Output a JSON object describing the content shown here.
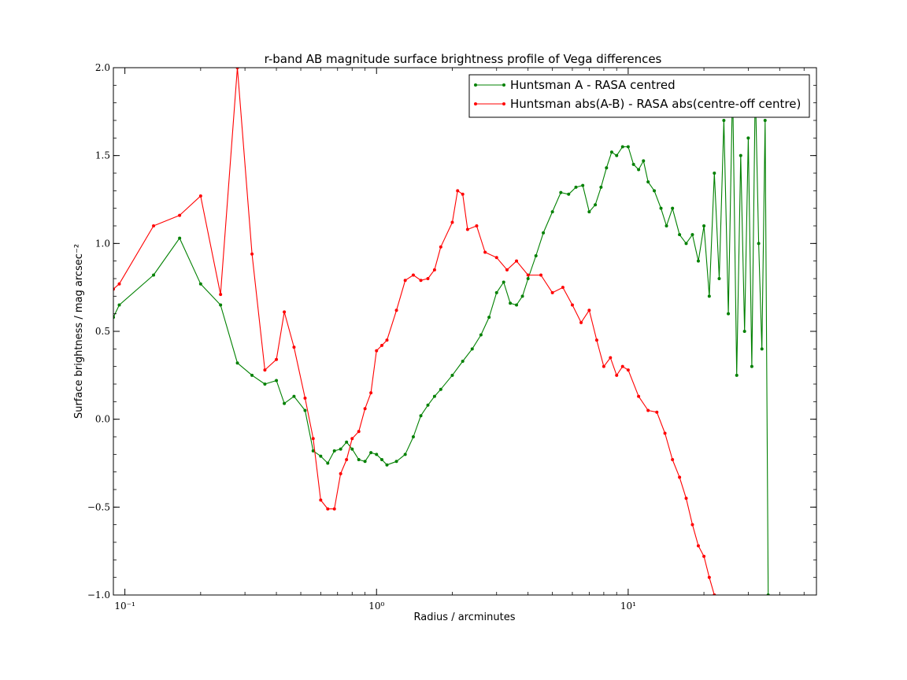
{
  "chart_data": {
    "type": "line",
    "title": "r-band AB magnitude surface brightness profile of Vega differences",
    "xlabel": "Radius / arcminutes",
    "ylabel": "Surface brightness / mag arcsec⁻²",
    "xscale": "log",
    "xlim": [
      0.09,
      56
    ],
    "ylim": [
      -1.0,
      2.0
    ],
    "x_ticks": [
      0.1,
      1,
      10
    ],
    "x_tick_labels": [
      "10⁻¹",
      "10⁰",
      "10¹"
    ],
    "y_ticks": [
      -1.0,
      -0.5,
      0.0,
      0.5,
      1.0,
      1.5,
      2.0
    ],
    "y_tick_labels": [
      "−1.0",
      "−0.5",
      "0.0",
      "0.5",
      "1.0",
      "1.5",
      "2.0"
    ],
    "grid": false,
    "legend_position": "top-right",
    "series": [
      {
        "name": "Huntsman A - RASA centred",
        "color": "#008000",
        "x": [
          0.09,
          0.095,
          0.13,
          0.165,
          0.2,
          0.24,
          0.28,
          0.32,
          0.36,
          0.4,
          0.43,
          0.47,
          0.52,
          0.56,
          0.6,
          0.64,
          0.68,
          0.72,
          0.76,
          0.8,
          0.85,
          0.9,
          0.95,
          1.0,
          1.05,
          1.1,
          1.2,
          1.3,
          1.4,
          1.5,
          1.6,
          1.7,
          1.8,
          2.0,
          2.2,
          2.4,
          2.6,
          2.8,
          3.0,
          3.2,
          3.4,
          3.6,
          3.8,
          4.0,
          4.3,
          4.6,
          5.0,
          5.4,
          5.8,
          6.2,
          6.6,
          7.0,
          7.4,
          7.8,
          8.2,
          8.6,
          9.0,
          9.5,
          10.0,
          10.5,
          11.0,
          11.5,
          12.0,
          12.7,
          13.5,
          14.2,
          15.0,
          16.0,
          17.0,
          18.0,
          19.0,
          20.0,
          21.0,
          22.0,
          23.0,
          24.0,
          25.0,
          26.0,
          27.0,
          28.0,
          29.0,
          30.0,
          31.0,
          32.0,
          33.0,
          34.0,
          35.0,
          36.0
        ],
        "y": [
          0.58,
          0.65,
          0.82,
          1.03,
          0.77,
          0.65,
          0.32,
          0.25,
          0.2,
          0.22,
          0.09,
          0.13,
          0.05,
          -0.18,
          -0.21,
          -0.25,
          -0.18,
          -0.17,
          -0.13,
          -0.17,
          -0.23,
          -0.24,
          -0.19,
          -0.2,
          -0.23,
          -0.26,
          -0.24,
          -0.2,
          -0.1,
          0.02,
          0.08,
          0.13,
          0.17,
          0.25,
          0.33,
          0.4,
          0.48,
          0.58,
          0.72,
          0.78,
          0.66,
          0.65,
          0.7,
          0.8,
          0.93,
          1.06,
          1.18,
          1.29,
          1.28,
          1.32,
          1.33,
          1.18,
          1.22,
          1.32,
          1.43,
          1.52,
          1.5,
          1.55,
          1.55,
          1.45,
          1.42,
          1.47,
          1.35,
          1.3,
          1.2,
          1.1,
          1.2,
          1.05,
          1.0,
          1.05,
          0.9,
          1.1,
          0.7,
          1.4,
          0.8,
          1.7,
          0.6,
          1.9,
          0.25,
          1.5,
          0.5,
          1.6,
          0.3,
          1.9,
          1.0,
          0.4,
          1.7,
          -1.0
        ]
      },
      {
        "name": "Huntsman abs(A-B) - RASA abs(centre-off centre)",
        "color": "#ff0000",
        "x": [
          0.09,
          0.095,
          0.13,
          0.165,
          0.2,
          0.24,
          0.28,
          0.32,
          0.36,
          0.4,
          0.43,
          0.47,
          0.52,
          0.56,
          0.6,
          0.64,
          0.68,
          0.72,
          0.76,
          0.8,
          0.85,
          0.9,
          0.95,
          1.0,
          1.05,
          1.1,
          1.2,
          1.3,
          1.4,
          1.5,
          1.6,
          1.7,
          1.8,
          2.0,
          2.1,
          2.2,
          2.3,
          2.5,
          2.7,
          3.0,
          3.3,
          3.6,
          4.0,
          4.5,
          5.0,
          5.5,
          6.0,
          6.5,
          7.0,
          7.5,
          8.0,
          8.5,
          9.0,
          9.5,
          10.0,
          11.0,
          12.0,
          13.0,
          14.0,
          15.0,
          16.0,
          17.0,
          18.0,
          19.0,
          20.0,
          21.0,
          22.0
        ],
        "y": [
          0.74,
          0.77,
          1.1,
          1.16,
          1.27,
          0.71,
          2.0,
          0.94,
          0.28,
          0.34,
          0.61,
          0.41,
          0.12,
          -0.11,
          -0.46,
          -0.51,
          -0.51,
          -0.31,
          -0.23,
          -0.11,
          -0.07,
          0.06,
          0.15,
          0.39,
          0.42,
          0.45,
          0.62,
          0.79,
          0.82,
          0.79,
          0.8,
          0.85,
          0.98,
          1.12,
          1.3,
          1.28,
          1.08,
          1.1,
          0.95,
          0.92,
          0.85,
          0.9,
          0.82,
          0.82,
          0.72,
          0.75,
          0.65,
          0.55,
          0.62,
          0.45,
          0.3,
          0.35,
          0.25,
          0.3,
          0.28,
          0.13,
          0.05,
          0.04,
          -0.08,
          -0.23,
          -0.33,
          -0.45,
          -0.6,
          -0.72,
          -0.78,
          -0.9,
          -1.0
        ]
      }
    ]
  }
}
